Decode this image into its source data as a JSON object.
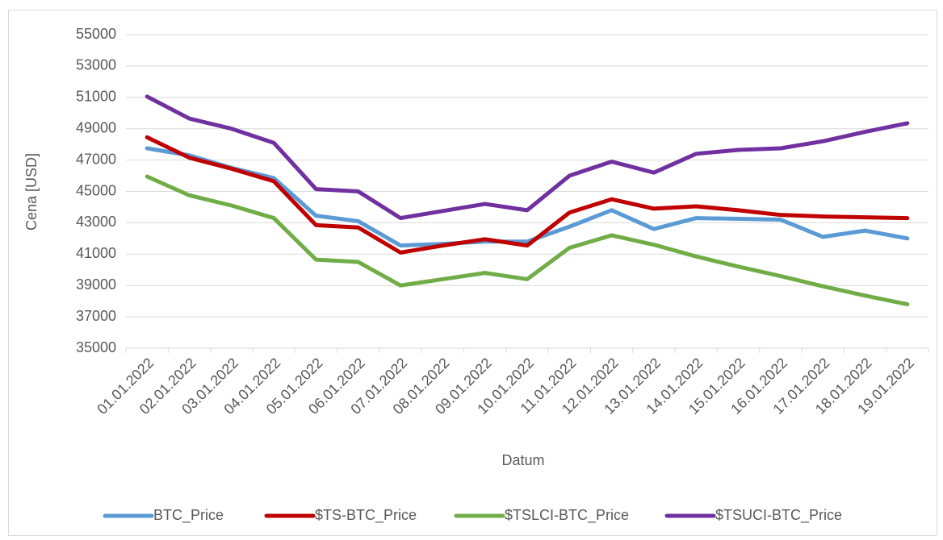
{
  "chart_data": {
    "type": "line",
    "xlabel": "Datum",
    "ylabel": "Cena [USD]",
    "categories": [
      "01.01.2022",
      "02.01.2022",
      "03.01.2022",
      "04.01.2022",
      "05.01.2022",
      "06.01.2022",
      "07.01.2022",
      "08.01.2022",
      "09.01.2022",
      "10.01.2022",
      "11.01.2022",
      "12.01.2022",
      "13.01.2022",
      "14.01.2022",
      "15.01.2022",
      "16.01.2022",
      "17.01.2022",
      "18.01.2022",
      "19.01.2022"
    ],
    "series": [
      {
        "name": "BTC_Price",
        "color": "#5b9bd5",
        "values": [
          47750,
          47300,
          46500,
          45850,
          43450,
          43100,
          41550,
          41650,
          41800,
          41800,
          42750,
          43800,
          42600,
          43300,
          43250,
          43200,
          42100,
          42500,
          42000
        ]
      },
      {
        "name": "$TS-BTC_Price",
        "color": "#c00000",
        "values": [
          48450,
          47150,
          46450,
          45650,
          42850,
          42700,
          41100,
          41550,
          41950,
          41550,
          43650,
          44500,
          43900,
          44050,
          43800,
          43500,
          43400,
          43350,
          43300
        ]
      },
      {
        "name": "$TSLCI-BTC_Price",
        "color": "#70ad47",
        "values": [
          45950,
          44750,
          44100,
          43300,
          40650,
          40500,
          39000,
          39400,
          39800,
          39400,
          41400,
          42200,
          41600,
          40850,
          40200,
          39600,
          38950,
          38350,
          37800
        ]
      },
      {
        "name": "$TSUCI-BTC_Price",
        "color": "#7030a0",
        "values": [
          51050,
          49650,
          49000,
          48100,
          45150,
          45000,
          43300,
          43750,
          44200,
          43800,
          46000,
          46900,
          46200,
          47400,
          47650,
          47750,
          48200,
          48800,
          49350
        ]
      }
    ],
    "ylim": [
      35000,
      55000
    ],
    "yticks": [
      35000,
      37000,
      39000,
      41000,
      43000,
      45000,
      47000,
      49000,
      51000,
      53000,
      55000
    ],
    "grid": true,
    "legend": "bottom"
  }
}
